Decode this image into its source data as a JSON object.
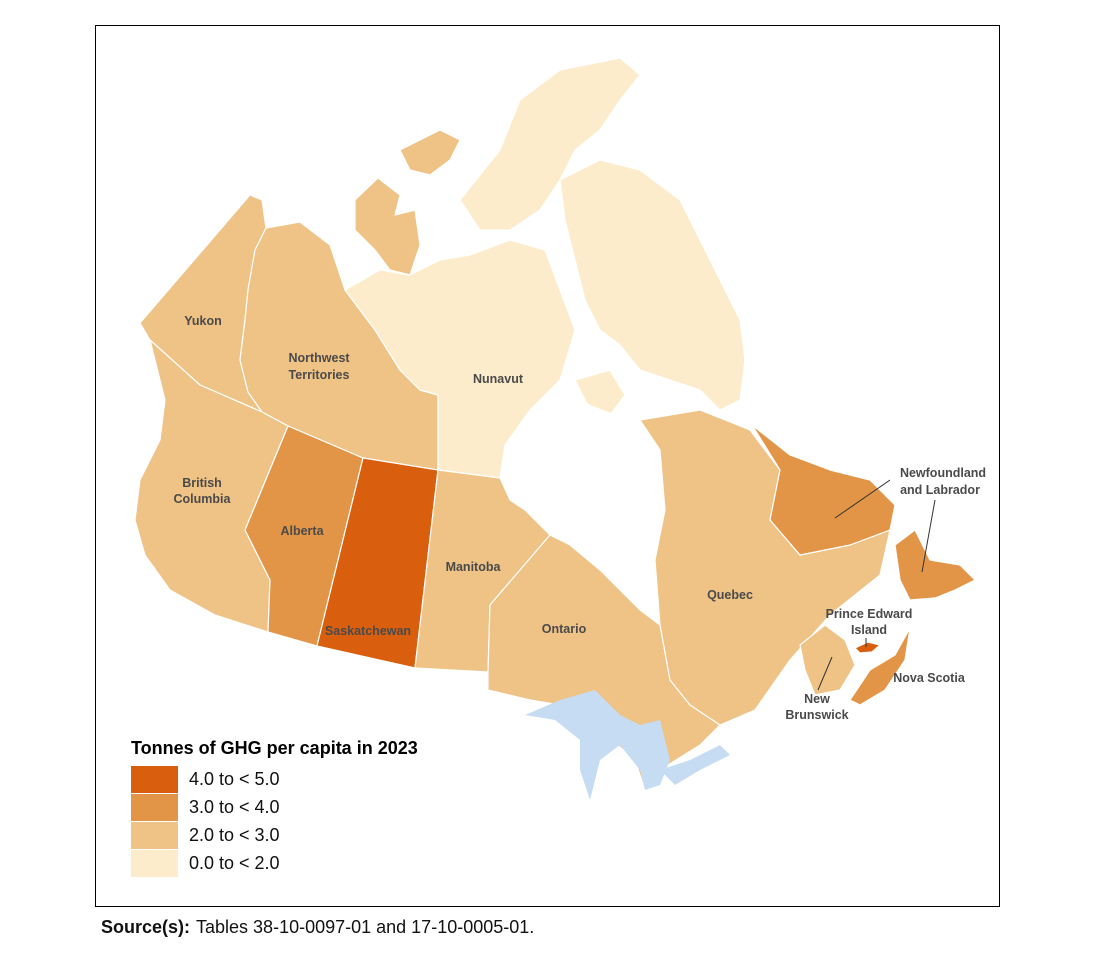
{
  "legend": {
    "title": "Tonnes of GHG per capita in 2023",
    "classes": [
      {
        "label": "4.0 to < 5.0",
        "color": "#d95f0e"
      },
      {
        "label": "3.0 to < 4.0",
        "color": "#e39547"
      },
      {
        "label": "2.0 to < 3.0",
        "color": "#efc285"
      },
      {
        "label": "0.0 to < 2.0",
        "color": "#fdeccb"
      }
    ]
  },
  "regions": [
    {
      "name": "Yukon",
      "class": "2.0 to < 3.0"
    },
    {
      "name": "Northwest Territories",
      "class": "2.0 to < 3.0"
    },
    {
      "name": "Nunavut",
      "class": "0.0 to < 2.0"
    },
    {
      "name": "British Columbia",
      "class": "2.0 to < 3.0"
    },
    {
      "name": "Alberta",
      "class": "3.0 to < 4.0"
    },
    {
      "name": "Saskatchewan",
      "class": "4.0 to < 5.0"
    },
    {
      "name": "Manitoba",
      "class": "2.0 to < 3.0"
    },
    {
      "name": "Ontario",
      "class": "2.0 to < 3.0"
    },
    {
      "name": "Quebec",
      "class": "2.0 to < 3.0"
    },
    {
      "name": "Newfoundland and Labrador",
      "class": "3.0 to < 4.0"
    },
    {
      "name": "New Brunswick",
      "class": "2.0 to < 3.0"
    },
    {
      "name": "Nova Scotia",
      "class": "3.0 to < 4.0"
    },
    {
      "name": "Prince Edward Island",
      "class": "4.0 to < 5.0"
    }
  ],
  "labels": {
    "yukon": "Yukon",
    "nwt_1": "Northwest",
    "nwt_2": "Territories",
    "nunavut": "Nunavut",
    "bc_1": "British",
    "bc_2": "Columbia",
    "alberta": "Alberta",
    "saskatchewan": "Saskatchewan",
    "manitoba": "Manitoba",
    "ontario": "Ontario",
    "quebec": "Quebec",
    "nl_1": "Newfoundland",
    "nl_2": "and Labrador",
    "pei_1": "Prince Edward",
    "pei_2": "Island",
    "nb_1": "New",
    "nb_2": "Brunswick",
    "ns": "Nova Scotia"
  },
  "source": {
    "label": "Source(s):",
    "text": "Tables 38-10-0097-01 and 17-10-0005-01."
  }
}
